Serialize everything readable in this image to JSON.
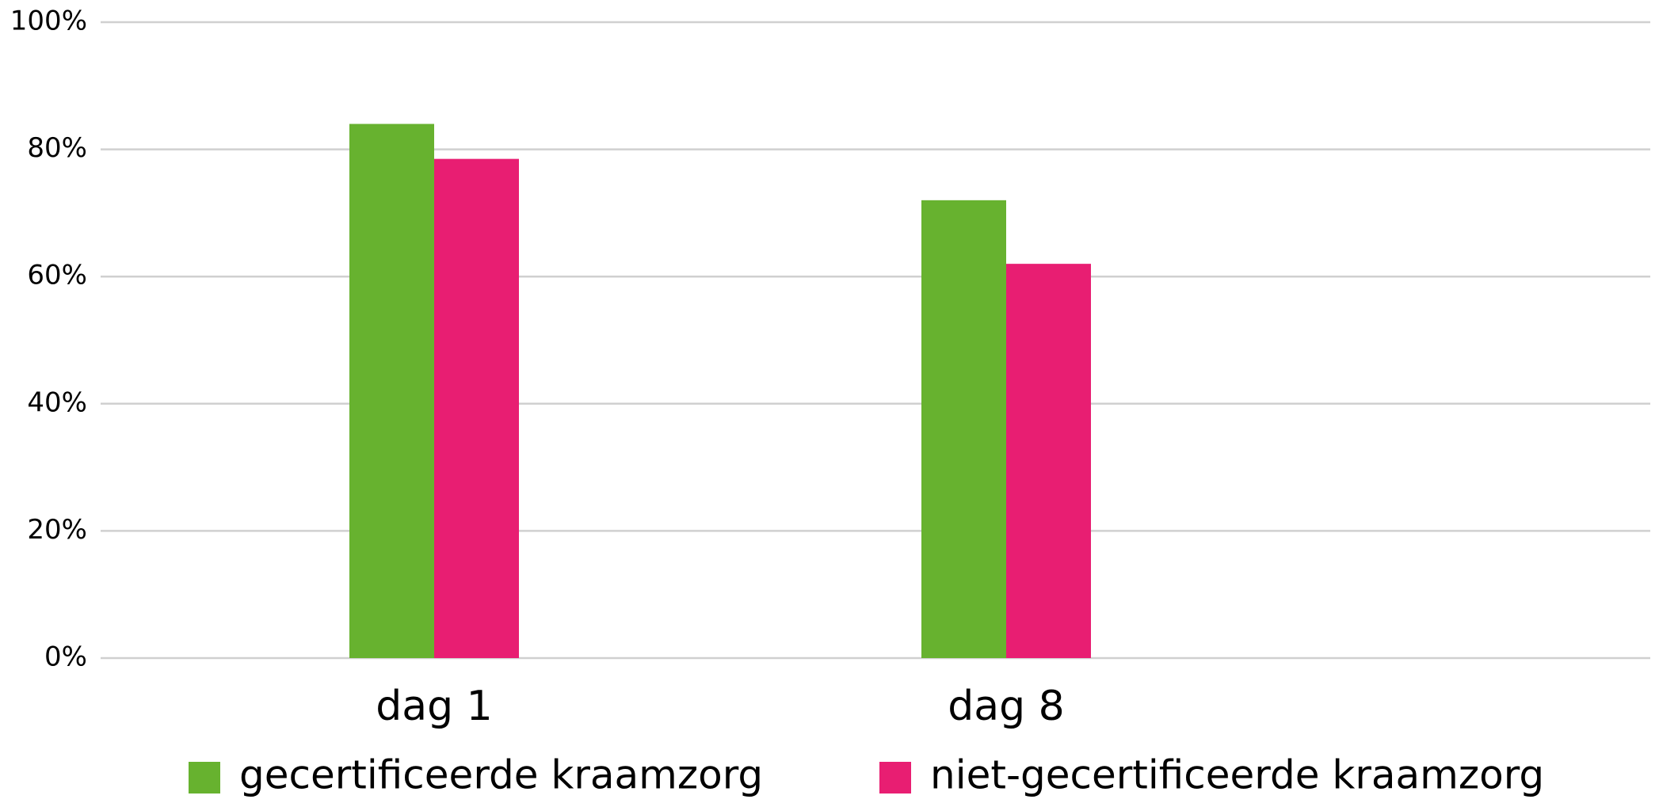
{
  "chart_data": {
    "type": "bar",
    "categories": [
      "dag 1",
      "dag 8"
    ],
    "series": [
      {
        "name": "gecertificeerde kraamzorg",
        "color": "#67b22f",
        "values": [
          84,
          72
        ]
      },
      {
        "name": "niet-gecertificeerde kraamzorg",
        "color": "#e81e72",
        "values": [
          78.5,
          62
        ]
      }
    ],
    "ylim": [
      0,
      100
    ],
    "yticks": [
      {
        "value": 0,
        "label": "0%"
      },
      {
        "value": 20,
        "label": "20%"
      },
      {
        "value": 40,
        "label": "40%"
      },
      {
        "value": 60,
        "label": "60%"
      },
      {
        "value": 80,
        "label": "80%"
      },
      {
        "value": 100,
        "label": "100%"
      }
    ],
    "grid": true,
    "legend": "bottom"
  }
}
